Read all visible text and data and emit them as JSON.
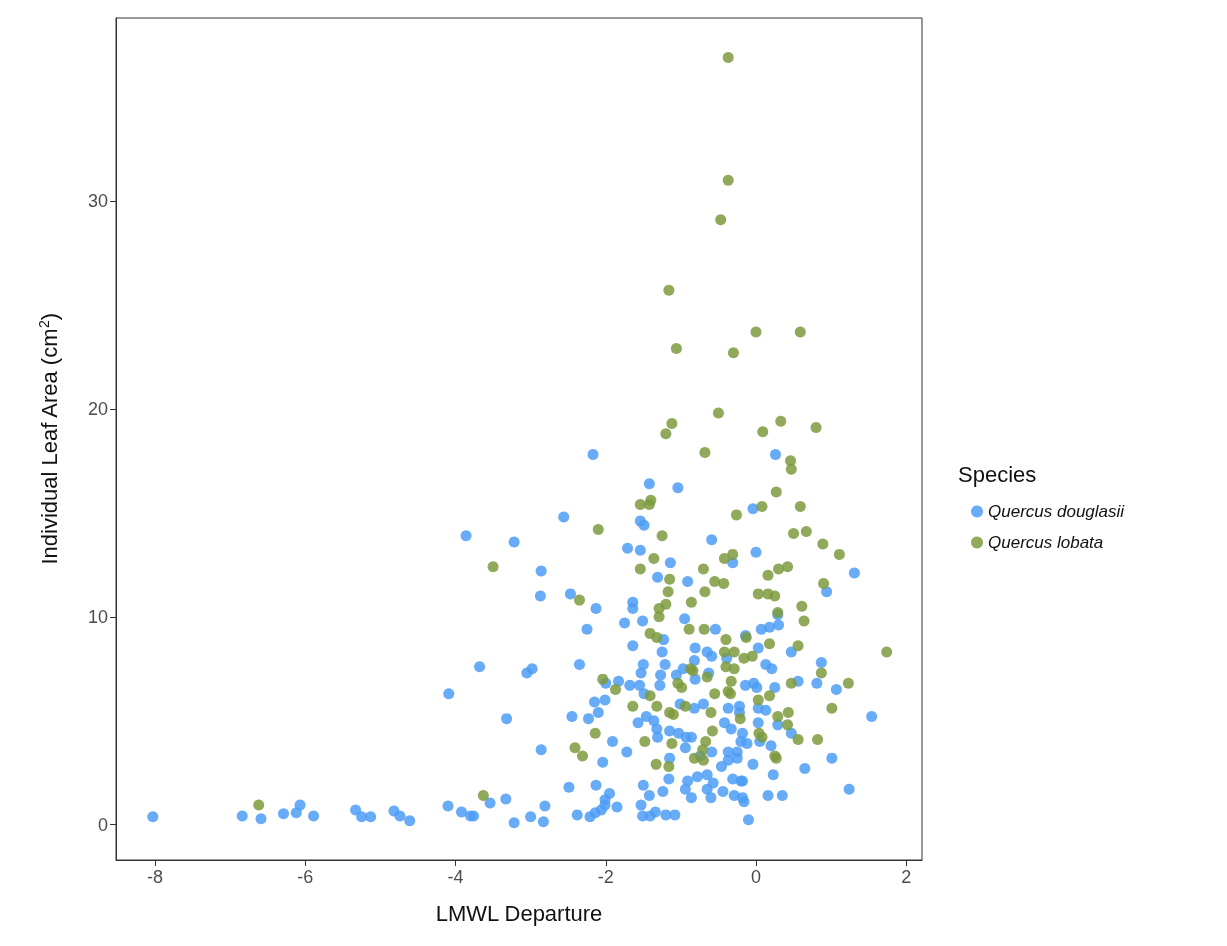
{
  "chart_data": {
    "type": "scatter",
    "xlabel": "LMWL Departure",
    "ylabel": "Individual Leaf Area (cm$^{2}$)",
    "legend_title": "Species",
    "legend": "right",
    "grid": false,
    "marker": "circle",
    "xlim": [
      -8.52,
      2.21
    ],
    "ylim": [
      -1.7,
      38.8
    ],
    "xticks": [
      -8,
      -6,
      -4,
      -2,
      0,
      2
    ],
    "yticks": [
      0,
      10,
      20,
      30
    ],
    "series": [
      {
        "name": "Quercus douglasii",
        "color": "#4d9cf5",
        "x": [
          -8.03,
          -6.84,
          -6.59,
          -6.29,
          -6.12,
          -6.07,
          -5.89,
          -5.33,
          -5.25,
          -5.13,
          -4.82,
          -4.74,
          -4.61,
          -4.1,
          -4.09,
          -3.68,
          -3.32,
          -3.92,
          -3.8,
          -3.76,
          -3.54,
          -3.33,
          -3.22,
          -2.17,
          0.26,
          -1.42,
          -1.04,
          -2.56,
          -0.04,
          -1.54,
          -1.49,
          -3.22,
          -0.59,
          -1.71,
          -1.54,
          0.0,
          -1.14,
          -0.31,
          -2.86,
          1.31,
          -1.31,
          -0.91,
          -2.87,
          -2.47,
          -2.13,
          -1.64,
          -1.64,
          0.94,
          0.29,
          -2.25,
          -1.75,
          -1.51,
          -0.95,
          -0.54,
          0.07,
          0.18,
          0.3,
          -0.14,
          -3.86,
          -3.05,
          -2.98,
          -1.23,
          -1.64,
          -0.81,
          -0.65,
          -0.59,
          -0.39,
          0.03,
          0.47,
          -2.35,
          -1.5,
          -1.53,
          -1.25,
          -1.21,
          -1.27,
          -1.28,
          -1.06,
          -0.97,
          -0.82,
          -0.81,
          -0.63,
          0.13,
          0.21,
          0.87,
          -0.14,
          -0.03,
          0.01,
          0.25,
          0.56,
          0.81,
          1.07,
          1.54,
          -2.0,
          -1.83,
          -1.68,
          -1.55,
          -1.49,
          -2.15,
          -2.01,
          -2.1,
          -2.23,
          -2.45,
          -1.01,
          -0.82,
          -0.7,
          -0.37,
          -0.22,
          -0.22,
          0.03,
          0.13,
          -1.46,
          -1.36,
          -1.57,
          -1.32,
          -1.31,
          -1.15,
          -1.03,
          -0.86,
          -0.93,
          -0.42,
          -0.33,
          -0.18,
          -0.2,
          -0.12,
          0.03,
          0.29,
          0.47,
          0.05,
          0.2,
          -2.86,
          -1.91,
          -1.72,
          -2.04,
          -0.94,
          -0.59,
          -0.37,
          -0.25,
          -0.25,
          -0.37,
          -0.74,
          -1.15,
          -0.04,
          0.65,
          1.01,
          0.23,
          -0.46,
          -0.65,
          -0.78,
          -1.16,
          -0.91,
          -0.94,
          -0.31,
          -0.2,
          -0.18,
          -0.57,
          -0.65,
          -2.49,
          -2.13,
          -1.5,
          -1.42,
          -1.24,
          -0.44,
          -0.86,
          -0.6,
          -0.29,
          -0.18,
          -0.16,
          0.16,
          0.35,
          1.24,
          -0.1,
          -3.0,
          -2.83,
          -2.81,
          -2.38,
          -2.21,
          -2.14,
          -2.06,
          -2.01,
          -1.95,
          -2.01,
          -1.85,
          -1.53,
          -1.51,
          -1.41,
          -1.34,
          -1.2,
          -1.08
        ],
        "values": [
          0.38,
          0.42,
          0.28,
          0.52,
          0.57,
          0.94,
          0.42,
          0.71,
          0.38,
          0.38,
          0.66,
          0.42,
          0.19,
          0.9,
          6.3,
          7.6,
          5.1,
          0.61,
          0.42,
          0.42,
          1.04,
          1.23,
          0.09,
          17.8,
          17.8,
          16.4,
          16.2,
          14.8,
          15.2,
          14.6,
          14.4,
          13.6,
          13.7,
          13.3,
          13.2,
          13.1,
          12.6,
          12.6,
          12.2,
          12.1,
          11.9,
          11.7,
          11.0,
          11.1,
          10.4,
          10.7,
          10.4,
          11.2,
          10.1,
          9.4,
          9.7,
          9.8,
          9.9,
          9.4,
          9.4,
          9.5,
          9.6,
          9.1,
          13.9,
          7.3,
          7.5,
          8.9,
          8.6,
          8.5,
          8.3,
          8.1,
          8.0,
          8.5,
          8.3,
          7.7,
          7.7,
          7.3,
          8.3,
          7.7,
          7.2,
          6.7,
          7.2,
          7.5,
          7.9,
          7.0,
          7.3,
          7.7,
          7.5,
          7.8,
          6.7,
          6.8,
          6.6,
          6.6,
          6.9,
          6.8,
          6.5,
          5.2,
          6.8,
          6.9,
          6.7,
          6.7,
          6.3,
          5.9,
          6.0,
          5.4,
          5.1,
          5.2,
          5.8,
          5.6,
          5.8,
          5.6,
          5.7,
          5.4,
          5.6,
          5.5,
          5.2,
          5.0,
          4.9,
          4.6,
          4.2,
          4.5,
          4.4,
          4.2,
          4.2,
          4.9,
          4.6,
          4.4,
          4.0,
          3.9,
          4.9,
          4.8,
          4.4,
          4.0,
          3.8,
          3.6,
          4.0,
          3.5,
          3.0,
          3.7,
          3.5,
          3.5,
          3.5,
          3.2,
          3.1,
          3.3,
          3.2,
          2.9,
          2.7,
          3.2,
          2.4,
          2.8,
          2.4,
          2.3,
          2.2,
          2.1,
          1.7,
          2.2,
          2.1,
          2.1,
          2.0,
          1.7,
          1.8,
          1.9,
          1.9,
          1.4,
          1.6,
          1.6,
          1.3,
          1.3,
          1.4,
          1.3,
          1.1,
          1.4,
          1.4,
          1.7,
          0.24,
          0.38,
          0.14,
          0.9,
          0.47,
          0.38,
          0.57,
          0.71,
          0.94,
          1.5,
          1.2,
          0.85,
          0.94,
          0.42,
          0.42,
          0.61,
          0.47,
          0.47
        ]
      },
      {
        "name": "Quercus lobata",
        "color": "#7c9a3e",
        "x": [
          -0.37,
          -0.37,
          -0.47,
          -1.16,
          0.0,
          0.59,
          -1.06,
          -0.3,
          -0.5,
          -1.12,
          -1.2,
          0.09,
          0.33,
          0.8,
          -0.68,
          0.46,
          0.47,
          0.27,
          -1.54,
          -1.42,
          -1.4,
          0.08,
          0.59,
          -0.26,
          -2.1,
          0.5,
          0.67,
          -1.25,
          0.89,
          1.11,
          -1.36,
          -0.31,
          -0.42,
          -1.54,
          -0.7,
          -1.15,
          0.3,
          0.42,
          0.16,
          -0.55,
          -0.43,
          -1.17,
          -0.68,
          0.03,
          0.16,
          0.25,
          0.9,
          -2.35,
          -1.2,
          -1.29,
          -0.86,
          0.61,
          -1.29,
          0.64,
          0.29,
          -0.89,
          -0.69,
          -1.41,
          -1.32,
          -0.4,
          -0.13,
          0.18,
          0.56,
          1.74,
          -0.42,
          -0.29,
          -0.16,
          -0.05,
          -0.4,
          -0.29,
          -0.87,
          -0.84,
          0.87,
          -0.65,
          -2.04,
          -1.87,
          -1.04,
          -0.99,
          -0.33,
          0.47,
          1.23,
          -1.41,
          -0.55,
          -0.37,
          -0.34,
          0.03,
          0.18,
          -1.64,
          -1.32,
          -1.15,
          -1.1,
          -0.94,
          -0.6,
          1.01,
          0.29,
          0.43,
          0.42,
          -0.21,
          -2.14,
          -1.48,
          -1.12,
          -0.67,
          -0.58,
          0.04,
          0.08,
          0.56,
          0.82,
          -2.41,
          -2.31,
          -0.71,
          -0.82,
          -0.7,
          0.25,
          0.27,
          -1.33,
          -1.16,
          -3.5,
          -3.63,
          -6.62
        ],
        "values": [
          36.9,
          31.0,
          29.1,
          25.7,
          23.7,
          23.7,
          22.9,
          22.7,
          19.8,
          19.3,
          18.8,
          18.9,
          19.4,
          19.1,
          17.9,
          17.5,
          17.1,
          16.0,
          15.4,
          15.4,
          15.6,
          15.3,
          15.3,
          14.9,
          14.2,
          14.0,
          14.1,
          13.9,
          13.5,
          13.0,
          12.8,
          13.0,
          12.8,
          12.3,
          12.3,
          11.8,
          12.3,
          12.4,
          12.0,
          11.7,
          11.6,
          11.2,
          11.2,
          11.1,
          11.1,
          11.0,
          11.6,
          10.8,
          10.6,
          10.4,
          10.7,
          10.5,
          10.0,
          9.8,
          10.2,
          9.4,
          9.4,
          9.2,
          9.0,
          8.9,
          9.0,
          8.7,
          8.6,
          8.3,
          8.3,
          8.3,
          8.0,
          8.1,
          7.6,
          7.5,
          7.5,
          7.4,
          7.3,
          7.1,
          7.0,
          6.5,
          6.8,
          6.6,
          6.9,
          6.8,
          6.8,
          6.2,
          6.3,
          6.4,
          6.3,
          6.0,
          6.2,
          5.7,
          5.7,
          5.4,
          5.3,
          5.7,
          5.4,
          5.6,
          5.2,
          5.4,
          4.8,
          5.1,
          4.4,
          4.0,
          3.9,
          4.0,
          4.5,
          4.4,
          4.2,
          4.1,
          4.1,
          3.7,
          3.3,
          3.6,
          3.2,
          3.1,
          3.3,
          3.2,
          2.9,
          2.8,
          12.4,
          1.4,
          0.95
        ]
      }
    ]
  }
}
